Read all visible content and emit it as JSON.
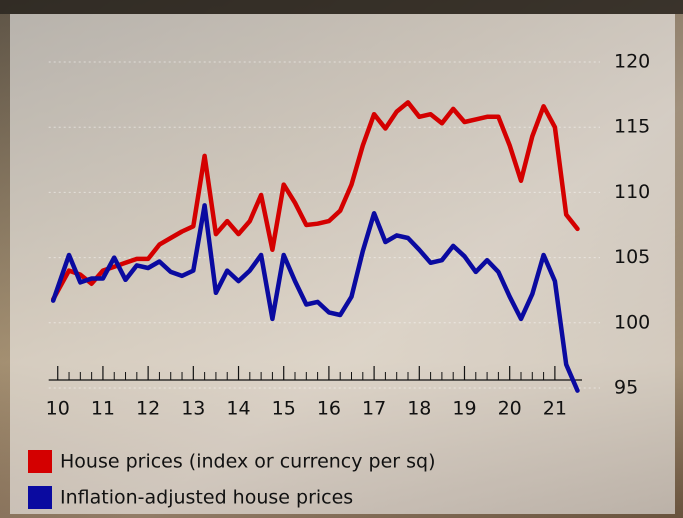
{
  "chart_data": {
    "type": "line",
    "x": [
      9.9,
      10.25,
      10.5,
      10.75,
      11.0,
      11.25,
      11.5,
      11.75,
      12.0,
      12.25,
      12.5,
      12.75,
      13.0,
      13.25,
      13.5,
      13.75,
      14.0,
      14.25,
      14.5,
      14.75,
      15.0,
      15.25,
      15.5,
      15.75,
      16.0,
      16.25,
      16.5,
      16.75,
      17.0,
      17.25,
      17.5,
      17.75,
      18.0,
      18.25,
      18.5,
      18.75,
      19.0,
      19.25,
      19.5,
      19.75,
      20.0,
      20.25,
      20.5,
      20.75,
      21.0,
      21.25,
      21.5
    ],
    "series": [
      {
        "name": "House prices (index or currency per sq)",
        "color": "#d40000",
        "values": [
          101.8,
          104,
          103.7,
          103,
          104,
          104.3,
          104.6,
          104.9,
          104.9,
          106,
          106.5,
          107,
          107.4,
          112.8,
          106.8,
          107.8,
          106.8,
          107.8,
          109.8,
          105.6,
          110.6,
          109.2,
          107.5,
          107.6,
          107.8,
          108.6,
          110.6,
          113.6,
          116,
          114.9,
          116.2,
          116.9,
          115.8,
          116,
          115.3,
          116.4,
          115.4,
          115.6,
          115.8,
          115.8,
          113.6,
          110.9,
          114.3,
          116.6,
          115,
          108.3,
          107.2
        ]
      },
      {
        "name": "Inflation-adjusted house prices",
        "color": "#0a0aa0",
        "values": [
          101.7,
          105.2,
          103.1,
          103.4,
          103.4,
          105,
          103.3,
          104.4,
          104.2,
          104.7,
          103.9,
          103.6,
          104,
          109,
          102.3,
          104,
          103.2,
          104,
          105.2,
          100.3,
          105.2,
          103.2,
          101.4,
          101.6,
          100.8,
          100.6,
          102,
          105.5,
          108.4,
          106.2,
          106.7,
          106.5,
          105.6,
          104.6,
          104.8,
          105.9,
          105.1,
          103.9,
          104.8,
          103.9,
          102,
          100.3,
          102.2,
          105.2,
          103.2,
          96.8,
          94.8
        ]
      }
    ],
    "xlim": [
      9.8,
      21.6
    ],
    "xticks": [
      10,
      11,
      12,
      13,
      14,
      15,
      16,
      17,
      18,
      19,
      20,
      21
    ],
    "ylim": [
      95,
      120
    ],
    "yticks": [
      95,
      100,
      105,
      110,
      115,
      120
    ],
    "grid": true
  }
}
